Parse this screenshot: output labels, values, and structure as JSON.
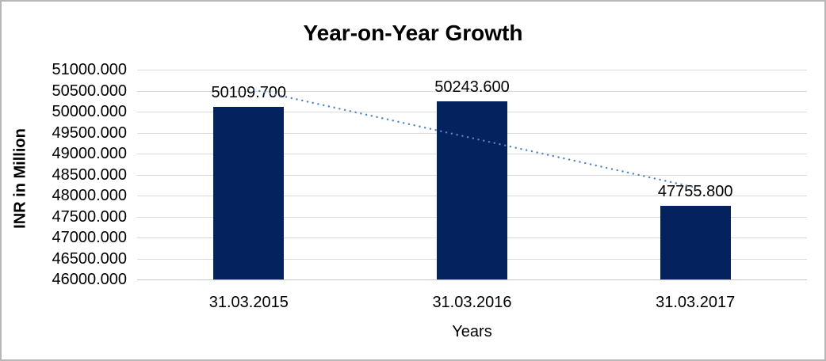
{
  "chart_data": {
    "type": "bar",
    "title": "Year-on-Year Growth",
    "xlabel": "Years",
    "ylabel": "INR in Million",
    "categories": [
      "31.03.2015",
      "31.03.2016",
      "31.03.2017"
    ],
    "values": [
      50109.7,
      50243.6,
      47755.8
    ],
    "data_labels": [
      "50109.700",
      "50243.600",
      "47755.800"
    ],
    "yticks": [
      "51000.000",
      "50500.000",
      "50000.000",
      "49500.000",
      "49000.000",
      "48500.000",
      "48000.000",
      "47500.000",
      "47000.000",
      "46500.000",
      "46000.000"
    ],
    "ylim": [
      46000,
      51000
    ],
    "ytick_step": 500,
    "grid": true,
    "legend": "none",
    "trendline": {
      "type": "linear",
      "style": "dotted",
      "start_value": 50546.7,
      "end_value": 48192.8
    },
    "colors": {
      "bar": "#03225e",
      "trendline": "#4f86c6",
      "gridline": "#d9d9d9",
      "text": "#000000",
      "frame": "#b7b7b7"
    }
  }
}
